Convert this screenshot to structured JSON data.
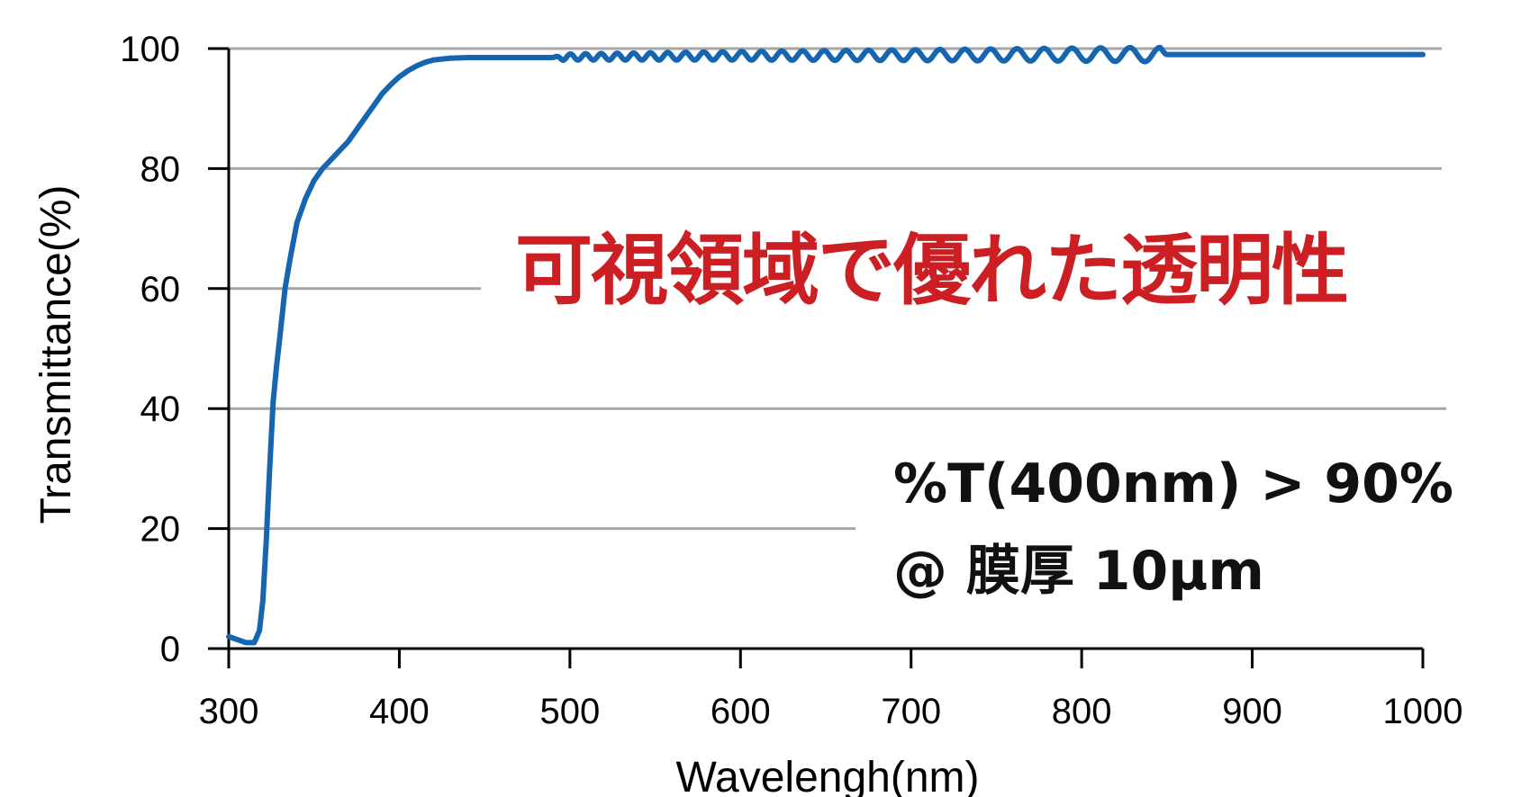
{
  "chart_data": {
    "type": "line",
    "title": "",
    "xlabel": "Wavelengh(nm)",
    "ylabel": "Transmittance(%)",
    "xlim": [
      300,
      1000
    ],
    "ylim": [
      0,
      100
    ],
    "x_ticks": [
      300,
      400,
      500,
      600,
      700,
      800,
      900,
      1000
    ],
    "y_ticks": [
      0,
      20,
      40,
      60,
      80,
      100
    ],
    "grid": "horizontal",
    "series": [
      {
        "color": "#1565b0",
        "x": [
          300,
          305,
          310,
          315,
          318,
          320,
          322,
          324,
          326,
          328,
          330,
          333,
          336,
          340,
          345,
          350,
          355,
          360,
          365,
          370,
          375,
          380,
          385,
          390,
          395,
          400,
          405,
          410,
          415,
          420,
          430,
          440,
          450,
          470,
          490,
          500,
          600,
          700,
          800,
          850,
          860,
          900,
          950,
          1000
        ],
        "y": [
          2,
          1.5,
          1,
          1,
          3,
          8,
          18,
          30,
          41,
          47,
          52,
          60,
          65,
          71,
          75,
          78,
          80,
          81.5,
          83,
          84.5,
          86.5,
          88.5,
          90.5,
          92.5,
          94,
          95.3,
          96.3,
          97.1,
          97.7,
          98.1,
          98.4,
          98.5,
          98.5,
          98.5,
          98.5,
          98.6,
          98.8,
          98.9,
          99,
          99,
          99,
          99,
          99,
          99
        ]
      }
    ],
    "ripple": {
      "range_nm": [
        490,
        850
      ],
      "amplitude_pct": [
        0.5,
        1.2
      ],
      "period_nm": [
        8.5,
        18
      ]
    }
  },
  "annotations": {
    "headline": "可視領域で優れた透明性",
    "headline_color": "#cc1f24",
    "spec_line1": "%T(400nm) > 90%",
    "spec_line2": "@ 膜厚 10μm"
  },
  "colors": {
    "line": "#1565b0",
    "grid": "#a6a6a6",
    "axis": "#000000"
  }
}
